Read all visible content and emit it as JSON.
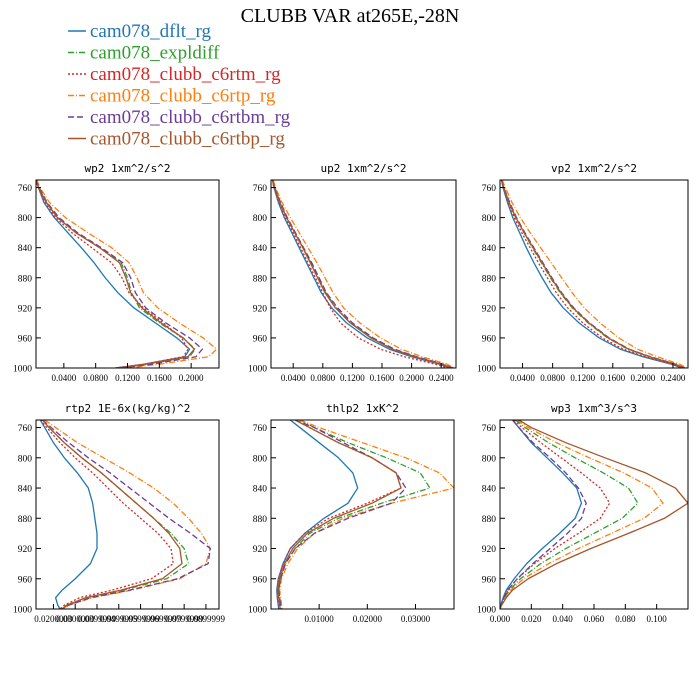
{
  "title": "CLUBB VAR at265E,-28N",
  "legend": [
    {
      "name": "cam078_dflt_rg",
      "color": "#1f77b4",
      "dash": "none"
    },
    {
      "name": "cam078_expldiff",
      "color": "#2ca02c",
      "dash": "6,2,1,2"
    },
    {
      "name": "cam078_clubb_c6rtm_rg",
      "color": "#d62728",
      "dash": "2,2"
    },
    {
      "name": "cam078_clubb_c6rtp_rg",
      "color": "#ff7f0e",
      "dash": "6,2,1,2"
    },
    {
      "name": "cam078_clubb_c6rtbm_rg",
      "color": "#6a3d9a",
      "dash": "6,3"
    },
    {
      "name": "cam078_clubb_c6rtbp_rg",
      "color": "#a6562a",
      "dash": "none"
    }
  ],
  "chart_data": [
    {
      "type": "line",
      "title": "wp2  1xm^2/s^2",
      "xlim": [
        0.005,
        0.235
      ],
      "ylim": [
        1000,
        750
      ],
      "yticks": [
        760,
        800,
        840,
        880,
        920,
        960,
        1000
      ],
      "xticks": [
        0.04,
        0.08,
        0.12,
        0.16,
        0.2
      ],
      "xtick_labels": [
        "0.0400",
        "0.0800",
        "0.1200",
        "0.1600",
        "0.2000"
      ],
      "y": [
        750,
        760,
        780,
        800,
        820,
        840,
        860,
        880,
        900,
        920,
        940,
        960,
        975,
        985,
        995,
        1000
      ],
      "series": [
        {
          "name": "cam078_dflt_rg",
          "x": [
            0.005,
            0.008,
            0.015,
            0.028,
            0.045,
            0.062,
            0.078,
            0.092,
            0.108,
            0.128,
            0.155,
            0.182,
            0.198,
            0.192,
            0.14,
            0.105
          ]
        },
        {
          "name": "cam078_expldiff",
          "x": [
            0.005,
            0.008,
            0.018,
            0.032,
            0.055,
            0.085,
            0.112,
            0.12,
            0.125,
            0.135,
            0.16,
            0.19,
            0.205,
            0.198,
            0.145,
            0.11
          ]
        },
        {
          "name": "cam078_clubb_c6rtm_rg",
          "x": [
            0.005,
            0.008,
            0.016,
            0.03,
            0.05,
            0.075,
            0.1,
            0.113,
            0.122,
            0.14,
            0.165,
            0.188,
            0.196,
            0.19,
            0.14,
            0.105
          ]
        },
        {
          "name": "cam078_clubb_c6rtp_rg",
          "x": [
            0.006,
            0.01,
            0.022,
            0.042,
            0.07,
            0.1,
            0.122,
            0.132,
            0.14,
            0.158,
            0.185,
            0.215,
            0.232,
            0.222,
            0.16,
            0.12
          ]
        },
        {
          "name": "cam078_clubb_c6rtbm_rg",
          "x": [
            0.005,
            0.009,
            0.019,
            0.034,
            0.057,
            0.087,
            0.114,
            0.124,
            0.13,
            0.143,
            0.168,
            0.198,
            0.214,
            0.206,
            0.15,
            0.112
          ]
        },
        {
          "name": "cam078_clubb_c6rtbp_rg",
          "x": [
            0.005,
            0.008,
            0.018,
            0.032,
            0.055,
            0.085,
            0.11,
            0.118,
            0.124,
            0.138,
            0.162,
            0.19,
            0.204,
            0.196,
            0.143,
            0.108
          ]
        }
      ]
    },
    {
      "type": "line",
      "title": "up2  1xm^2/s^2",
      "xlim": [
        0.01,
        0.26
      ],
      "ylim": [
        1000,
        750
      ],
      "yticks": [
        760,
        800,
        840,
        880,
        920,
        960,
        1000
      ],
      "xticks": [
        0.04,
        0.08,
        0.12,
        0.16,
        0.2,
        0.24
      ],
      "xtick_labels": [
        "0.0400",
        "0.0800",
        "0.1200",
        "0.1600",
        "0.2000",
        "0.2400"
      ],
      "y": [
        750,
        760,
        780,
        800,
        820,
        840,
        860,
        880,
        900,
        920,
        940,
        960,
        975,
        985,
        995,
        1000
      ],
      "series": [
        {
          "name": "cam078_dflt_rg",
          "x": [
            0.012,
            0.014,
            0.02,
            0.028,
            0.038,
            0.048,
            0.058,
            0.068,
            0.078,
            0.092,
            0.112,
            0.14,
            0.17,
            0.2,
            0.238,
            0.252
          ]
        },
        {
          "name": "cam078_expldiff",
          "x": [
            0.012,
            0.015,
            0.022,
            0.031,
            0.042,
            0.053,
            0.064,
            0.074,
            0.084,
            0.098,
            0.118,
            0.146,
            0.175,
            0.205,
            0.242,
            0.255
          ]
        },
        {
          "name": "cam078_clubb_c6rtm_rg",
          "x": [
            0.012,
            0.014,
            0.021,
            0.029,
            0.04,
            0.05,
            0.06,
            0.07,
            0.08,
            0.09,
            0.104,
            0.128,
            0.158,
            0.19,
            0.232,
            0.25
          ]
        },
        {
          "name": "cam078_clubb_c6rtp_rg",
          "x": [
            0.013,
            0.016,
            0.025,
            0.036,
            0.048,
            0.06,
            0.072,
            0.083,
            0.094,
            0.108,
            0.13,
            0.158,
            0.186,
            0.214,
            0.248,
            0.258
          ]
        },
        {
          "name": "cam078_clubb_c6rtbm_rg",
          "x": [
            0.012,
            0.015,
            0.023,
            0.032,
            0.043,
            0.054,
            0.065,
            0.075,
            0.085,
            0.1,
            0.12,
            0.148,
            0.177,
            0.207,
            0.243,
            0.256
          ]
        },
        {
          "name": "cam078_clubb_c6rtbp_rg",
          "x": [
            0.012,
            0.015,
            0.022,
            0.031,
            0.042,
            0.053,
            0.063,
            0.073,
            0.083,
            0.097,
            0.117,
            0.145,
            0.174,
            0.204,
            0.241,
            0.254
          ]
        }
      ]
    },
    {
      "type": "line",
      "title": "vp2  1xm^2/s^2",
      "xlim": [
        0.01,
        0.26
      ],
      "ylim": [
        1000,
        750
      ],
      "yticks": [
        760,
        800,
        840,
        880,
        920,
        960,
        1000
      ],
      "xticks": [
        0.04,
        0.08,
        0.12,
        0.16,
        0.2,
        0.24
      ],
      "xtick_labels": [
        "0.0400",
        "0.0800",
        "0.1200",
        "0.1600",
        "0.2000",
        "0.2400"
      ],
      "y": [
        750,
        760,
        780,
        800,
        820,
        840,
        860,
        880,
        900,
        920,
        940,
        960,
        975,
        985,
        995,
        1000
      ],
      "series": [
        {
          "name": "cam078_dflt_rg",
          "x": [
            0.012,
            0.014,
            0.02,
            0.027,
            0.036,
            0.045,
            0.055,
            0.066,
            0.078,
            0.094,
            0.115,
            0.142,
            0.17,
            0.2,
            0.238,
            0.252
          ]
        },
        {
          "name": "cam078_expldiff",
          "x": [
            0.012,
            0.015,
            0.022,
            0.031,
            0.042,
            0.053,
            0.065,
            0.077,
            0.09,
            0.106,
            0.127,
            0.153,
            0.18,
            0.208,
            0.243,
            0.255
          ]
        },
        {
          "name": "cam078_clubb_c6rtm_rg",
          "x": [
            0.012,
            0.015,
            0.021,
            0.029,
            0.039,
            0.05,
            0.061,
            0.073,
            0.085,
            0.1,
            0.12,
            0.146,
            0.174,
            0.203,
            0.24,
            0.253
          ]
        },
        {
          "name": "cam078_clubb_c6rtp_rg",
          "x": [
            0.013,
            0.017,
            0.026,
            0.037,
            0.05,
            0.064,
            0.078,
            0.092,
            0.106,
            0.122,
            0.143,
            0.168,
            0.193,
            0.219,
            0.249,
            0.258
          ]
        },
        {
          "name": "cam078_clubb_c6rtbm_rg",
          "x": [
            0.012,
            0.015,
            0.023,
            0.032,
            0.043,
            0.055,
            0.067,
            0.079,
            0.092,
            0.108,
            0.129,
            0.155,
            0.182,
            0.21,
            0.244,
            0.256
          ]
        },
        {
          "name": "cam078_clubb_c6rtbp_rg",
          "x": [
            0.012,
            0.015,
            0.022,
            0.031,
            0.042,
            0.054,
            0.066,
            0.078,
            0.091,
            0.107,
            0.128,
            0.154,
            0.181,
            0.209,
            0.243,
            0.255
          ]
        }
      ]
    },
    {
      "type": "line",
      "title": "rtp2  1E-6x(kg/kg)^2",
      "xlim": [
        0.012,
        0.096
      ],
      "ylim": [
        1000,
        750
      ],
      "yticks": [
        760,
        800,
        840,
        880,
        920,
        960,
        1000
      ],
      "xticks": [
        0.02,
        0.03,
        0.04,
        0.05,
        0.06,
        0.07,
        0.08,
        0.09
      ],
      "xtick_labels": [
        "0.0200000",
        "0.0300000",
        "0.0399999",
        "0.0499999",
        "0.0599999",
        "0.0699999",
        "0.0799999",
        "0.0899999"
      ],
      "y": [
        750,
        760,
        780,
        800,
        820,
        840,
        860,
        880,
        900,
        920,
        940,
        960,
        975,
        985,
        995,
        1000
      ],
      "series": [
        {
          "name": "cam078_dflt_rg",
          "x": [
            0.014,
            0.016,
            0.02,
            0.025,
            0.031,
            0.036,
            0.038,
            0.039,
            0.04,
            0.04,
            0.037,
            0.03,
            0.024,
            0.021,
            0.022,
            0.023
          ]
        },
        {
          "name": "cam078_expldiff",
          "x": [
            0.015,
            0.018,
            0.025,
            0.033,
            0.042,
            0.05,
            0.058,
            0.066,
            0.074,
            0.08,
            0.082,
            0.072,
            0.052,
            0.035,
            0.026,
            0.024
          ]
        },
        {
          "name": "cam078_clubb_c6rtm_rg",
          "x": [
            0.014,
            0.017,
            0.023,
            0.03,
            0.038,
            0.045,
            0.052,
            0.06,
            0.068,
            0.074,
            0.075,
            0.065,
            0.047,
            0.032,
            0.025,
            0.023
          ]
        },
        {
          "name": "cam078_clubb_c6rtp_rg",
          "x": [
            0.016,
            0.021,
            0.031,
            0.043,
            0.055,
            0.066,
            0.075,
            0.082,
            0.088,
            0.092,
            0.09,
            0.078,
            0.056,
            0.038,
            0.027,
            0.024
          ]
        },
        {
          "name": "cam078_clubb_c6rtbm_rg",
          "x": [
            0.015,
            0.019,
            0.027,
            0.036,
            0.046,
            0.055,
            0.064,
            0.073,
            0.083,
            0.092,
            0.091,
            0.077,
            0.055,
            0.037,
            0.027,
            0.024
          ]
        },
        {
          "name": "cam078_clubb_c6rtbp_rg",
          "x": [
            0.015,
            0.018,
            0.025,
            0.033,
            0.042,
            0.05,
            0.058,
            0.066,
            0.073,
            0.078,
            0.079,
            0.07,
            0.051,
            0.035,
            0.026,
            0.024
          ]
        }
      ]
    },
    {
      "type": "line",
      "title": "thlp2  1xK^2",
      "xlim": [
        0.0,
        0.038
      ],
      "ylim": [
        1000,
        750
      ],
      "yticks": [
        760,
        800,
        840,
        880,
        920,
        960,
        1000
      ],
      "xticks": [
        0.01,
        0.02,
        0.03
      ],
      "xtick_labels": [
        "0.01000",
        "0.02000",
        "0.03000"
      ],
      "y": [
        750,
        760,
        780,
        800,
        820,
        840,
        860,
        880,
        900,
        920,
        940,
        960,
        975,
        985,
        995,
        1000
      ],
      "series": [
        {
          "name": "cam078_dflt_rg",
          "x": [
            0.004,
            0.006,
            0.01,
            0.014,
            0.017,
            0.018,
            0.016,
            0.011,
            0.007,
            0.004,
            0.0025,
            0.0015,
            0.0012,
            0.0013,
            0.0015,
            0.0016
          ]
        },
        {
          "name": "cam078_expldiff",
          "x": [
            0.006,
            0.009,
            0.016,
            0.024,
            0.031,
            0.033,
            0.023,
            0.014,
            0.008,
            0.005,
            0.003,
            0.002,
            0.0016,
            0.0018,
            0.002,
            0.0021
          ]
        },
        {
          "name": "cam078_clubb_c6rtm_rg",
          "x": [
            0.005,
            0.008,
            0.014,
            0.021,
            0.026,
            0.027,
            0.02,
            0.012,
            0.007,
            0.004,
            0.0025,
            0.0016,
            0.0013,
            0.0015,
            0.0017,
            0.0018
          ]
        },
        {
          "name": "cam078_clubb_c6rtp_rg",
          "x": [
            0.006,
            0.01,
            0.019,
            0.028,
            0.035,
            0.038,
            0.025,
            0.015,
            0.009,
            0.0055,
            0.0035,
            0.0022,
            0.0018,
            0.002,
            0.0022,
            0.0023
          ]
        },
        {
          "name": "cam078_clubb_c6rtbm_rg",
          "x": [
            0.005,
            0.009,
            0.015,
            0.021,
            0.026,
            0.028,
            0.025,
            0.016,
            0.009,
            0.005,
            0.003,
            0.002,
            0.0016,
            0.0018,
            0.002,
            0.0021
          ]
        },
        {
          "name": "cam078_clubb_c6rtbp_rg",
          "x": [
            0.005,
            0.008,
            0.014,
            0.021,
            0.026,
            0.027,
            0.021,
            0.013,
            0.0075,
            0.0045,
            0.0028,
            0.0018,
            0.0014,
            0.0016,
            0.0018,
            0.0019
          ]
        }
      ]
    },
    {
      "type": "line",
      "title": "wp3  1xm^3/s^3",
      "xlim": [
        0.0,
        0.12
      ],
      "ylim": [
        1000,
        750
      ],
      "yticks": [
        760,
        800,
        840,
        880,
        920,
        960,
        1000
      ],
      "xticks": [
        0.0,
        0.02,
        0.04,
        0.06,
        0.08,
        0.1
      ],
      "xtick_labels": [
        "0.000",
        "0.020",
        "0.040",
        "0.060",
        "0.080",
        "0.100"
      ],
      "y": [
        750,
        760,
        780,
        800,
        820,
        840,
        860,
        880,
        900,
        920,
        940,
        960,
        975,
        985,
        995,
        1000
      ],
      "series": [
        {
          "name": "cam078_dflt_rg",
          "x": [
            0.008,
            0.012,
            0.02,
            0.03,
            0.04,
            0.049,
            0.052,
            0.048,
            0.038,
            0.027,
            0.017,
            0.009,
            0.004,
            0.002,
            0.0005,
            0.0
          ]
        },
        {
          "name": "cam078_expldiff",
          "x": [
            0.01,
            0.016,
            0.031,
            0.048,
            0.066,
            0.082,
            0.088,
            0.078,
            0.06,
            0.042,
            0.026,
            0.013,
            0.006,
            0.003,
            0.0008,
            0.0
          ]
        },
        {
          "name": "cam078_clubb_c6rtm_rg",
          "x": [
            0.009,
            0.014,
            0.026,
            0.039,
            0.052,
            0.064,
            0.07,
            0.064,
            0.05,
            0.035,
            0.022,
            0.011,
            0.005,
            0.0025,
            0.0007,
            0.0
          ]
        },
        {
          "name": "cam078_clubb_c6rtp_rg",
          "x": [
            0.011,
            0.018,
            0.036,
            0.057,
            0.079,
            0.097,
            0.104,
            0.092,
            0.071,
            0.05,
            0.031,
            0.015,
            0.007,
            0.0035,
            0.0009,
            0.0
          ]
        },
        {
          "name": "cam078_clubb_c6rtbm_rg",
          "x": [
            0.008,
            0.012,
            0.021,
            0.032,
            0.042,
            0.05,
            0.055,
            0.052,
            0.043,
            0.032,
            0.021,
            0.011,
            0.005,
            0.0025,
            0.0007,
            0.0
          ]
        },
        {
          "name": "cam078_clubb_c6rtbp_rg",
          "x": [
            0.012,
            0.02,
            0.042,
            0.067,
            0.093,
            0.112,
            0.12,
            0.105,
            0.082,
            0.058,
            0.036,
            0.018,
            0.008,
            0.004,
            0.001,
            0.0
          ]
        }
      ]
    }
  ]
}
